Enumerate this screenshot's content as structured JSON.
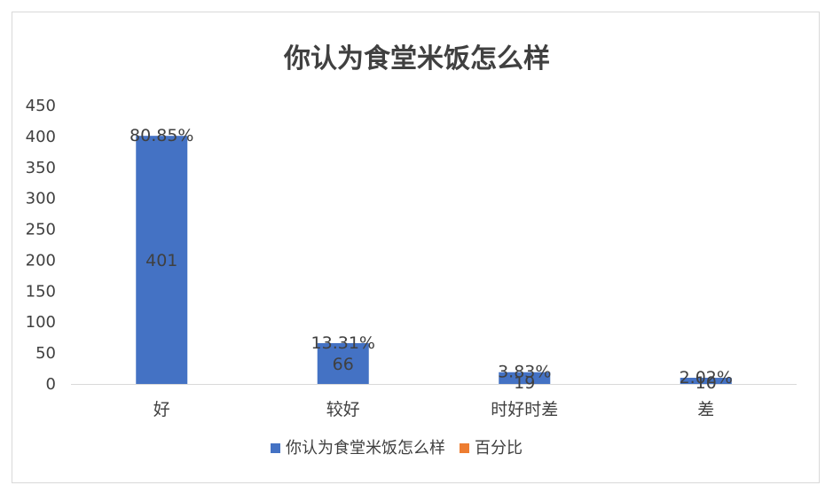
{
  "chart_data": {
    "type": "bar",
    "title": "你认为食堂米饭怎么样",
    "categories": [
      "好",
      "较好",
      "时好时差",
      "差"
    ],
    "series": [
      {
        "name": "你认为食堂米饭怎么样",
        "values": [
          401,
          66,
          19,
          10
        ],
        "color": "#4472c4"
      },
      {
        "name": "百分比",
        "values": [
          "80.85%",
          "13.31%",
          "3.83%",
          "2.02%"
        ],
        "color": "#ed7d31"
      }
    ],
    "yticks": [
      "0",
      "50",
      "100",
      "150",
      "200",
      "250",
      "300",
      "350",
      "400",
      "450"
    ],
    "ylim": [
      0,
      450
    ],
    "grid": false,
    "legend_position": "bottom",
    "axis_color": "#d9d9d9"
  }
}
